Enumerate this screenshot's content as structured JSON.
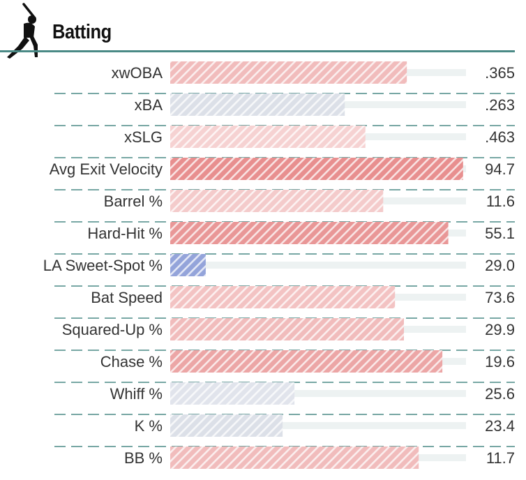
{
  "header": {
    "title": "Batting",
    "icon": "batter-icon"
  },
  "colors": {
    "rule": "#4a8a86",
    "track": "#edf2f2",
    "red": "#e06a6a",
    "blue": "#5b73c6",
    "neutral": "#c9d0dc"
  },
  "chart_data": {
    "type": "bar",
    "orientation": "horizontal",
    "note_scale": "percentile",
    "xlim": [
      0,
      100
    ],
    "rows": [
      {
        "label": "xwOBA",
        "value_text": ".365",
        "percentile": 80,
        "tone": "red",
        "intensity": 0.45
      },
      {
        "label": "xBA",
        "value_text": ".263",
        "percentile": 59,
        "tone": "gray",
        "intensity": 0.35
      },
      {
        "label": "xSLG",
        "value_text": ".463",
        "percentile": 66,
        "tone": "red",
        "intensity": 0.3
      },
      {
        "label": "Avg Exit Velocity",
        "value_text": "94.7",
        "percentile": 99,
        "tone": "red",
        "intensity": 0.75
      },
      {
        "label": "Barrel %",
        "value_text": "11.6",
        "percentile": 72,
        "tone": "red",
        "intensity": 0.35
      },
      {
        "label": "Hard-Hit %",
        "value_text": "55.1",
        "percentile": 94,
        "tone": "red",
        "intensity": 0.7
      },
      {
        "label": "LA Sweet-Spot %",
        "value_text": "29.0",
        "percentile": 12,
        "tone": "blue",
        "intensity": 0.65
      },
      {
        "label": "Bat Speed",
        "value_text": "73.6",
        "percentile": 76,
        "tone": "red",
        "intensity": 0.4
      },
      {
        "label": "Squared-Up %",
        "value_text": "29.9",
        "percentile": 79,
        "tone": "red",
        "intensity": 0.45
      },
      {
        "label": "Chase %",
        "value_text": "19.6",
        "percentile": 92,
        "tone": "red",
        "intensity": 0.6
      },
      {
        "label": "Whiff %",
        "value_text": "25.6",
        "percentile": 42,
        "tone": "gray",
        "intensity": 0.3
      },
      {
        "label": "K %",
        "value_text": "23.4",
        "percentile": 38,
        "tone": "gray",
        "intensity": 0.35
      },
      {
        "label": "BB %",
        "value_text": "11.7",
        "percentile": 84,
        "tone": "red",
        "intensity": 0.45
      }
    ]
  }
}
